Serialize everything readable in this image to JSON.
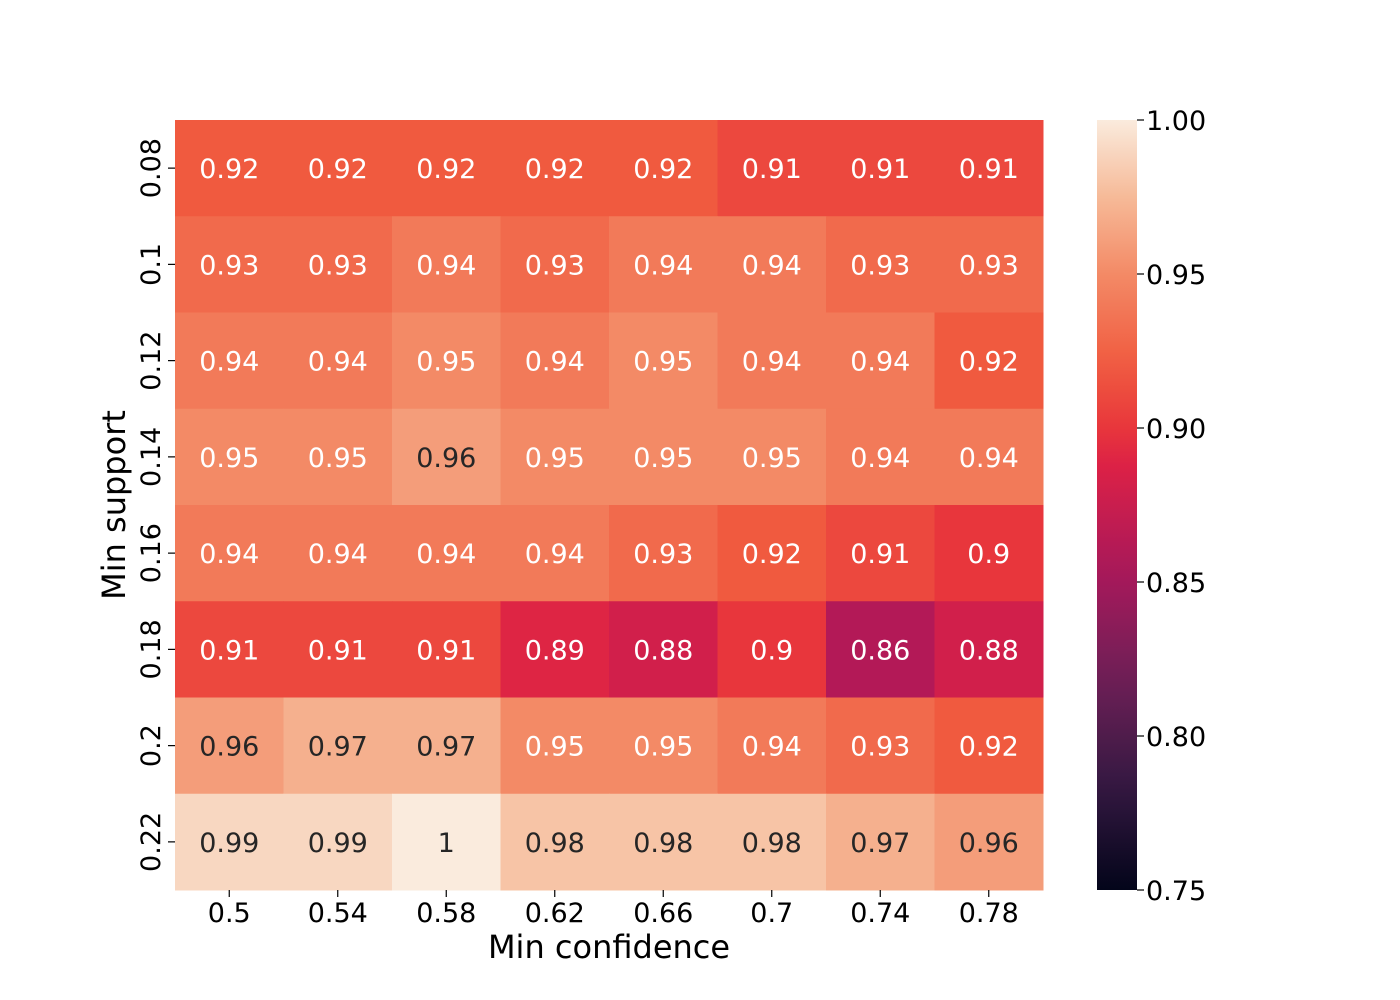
{
  "chart_data": {
    "type": "heatmap",
    "title": "",
    "xlabel": "Min confidence",
    "ylabel": "Min support",
    "x_categories": [
      "0.5",
      "0.54",
      "0.58",
      "0.62",
      "0.66",
      "0.7",
      "0.74",
      "0.78"
    ],
    "y_categories": [
      "0.08",
      "0.1",
      "0.12",
      "0.14",
      "0.16",
      "0.18",
      "0.2",
      "0.22"
    ],
    "values": [
      [
        0.92,
        0.92,
        0.92,
        0.92,
        0.92,
        0.91,
        0.91,
        0.91
      ],
      [
        0.93,
        0.93,
        0.94,
        0.93,
        0.94,
        0.94,
        0.93,
        0.93
      ],
      [
        0.94,
        0.94,
        0.95,
        0.94,
        0.95,
        0.94,
        0.94,
        0.92
      ],
      [
        0.95,
        0.95,
        0.96,
        0.95,
        0.95,
        0.95,
        0.94,
        0.94
      ],
      [
        0.94,
        0.94,
        0.94,
        0.94,
        0.93,
        0.92,
        0.91,
        0.9
      ],
      [
        0.91,
        0.91,
        0.91,
        0.89,
        0.88,
        0.9,
        0.86,
        0.88
      ],
      [
        0.96,
        0.97,
        0.97,
        0.95,
        0.95,
        0.94,
        0.93,
        0.92
      ],
      [
        0.99,
        0.99,
        1,
        0.98,
        0.98,
        0.98,
        0.97,
        0.96
      ]
    ],
    "colorbar": {
      "colormap": "rocket",
      "range": [
        0.75,
        1.0
      ],
      "ticks": [
        "0.75",
        "0.80",
        "0.85",
        "0.90",
        "0.95",
        "1.00"
      ]
    },
    "annotations": true,
    "grid": false,
    "legend": "none"
  }
}
